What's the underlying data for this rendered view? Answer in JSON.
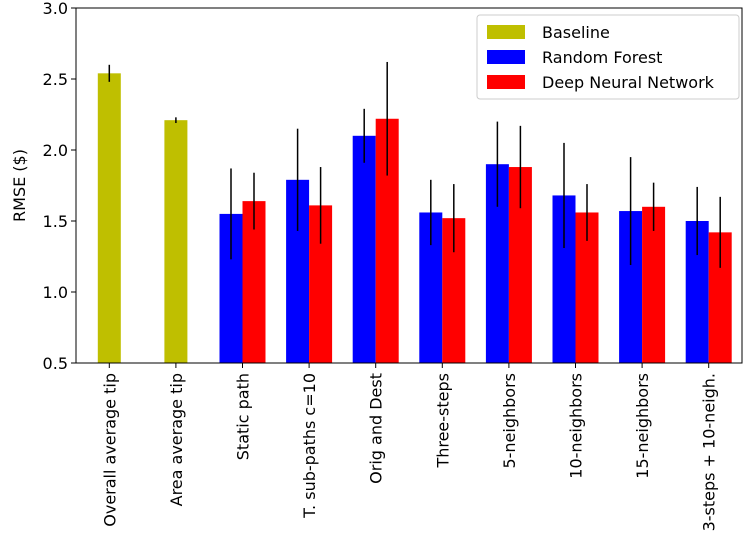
{
  "chart_data": {
    "type": "bar",
    "title": "",
    "xlabel": "",
    "ylabel": "RMSE ($)",
    "ylim": [
      0.5,
      3.0
    ],
    "yticks": [
      "0.5",
      "1.0",
      "1.5",
      "2.0",
      "2.5",
      "3.0"
    ],
    "grid": false,
    "legend_position": "top-right",
    "categories": [
      "Overall average tip",
      "Area average tip",
      "Static path",
      "T. sub-paths c=10",
      "Orig and Dest",
      "Three-steps",
      "5-neighbors",
      "10-neighbors",
      "15-neighbors",
      "3-steps + 10-neigh."
    ],
    "series": [
      {
        "name": "Baseline",
        "color": "#bfbf00",
        "values": [
          2.54,
          2.21,
          null,
          null,
          null,
          null,
          null,
          null,
          null,
          null
        ],
        "errors": [
          0.06,
          0.02,
          null,
          null,
          null,
          null,
          null,
          null,
          null,
          null
        ]
      },
      {
        "name": "Random Forest",
        "color": "#0000ff",
        "values": [
          null,
          null,
          1.55,
          1.79,
          2.1,
          1.56,
          1.9,
          1.68,
          1.57,
          1.5
        ],
        "errors": [
          null,
          null,
          0.32,
          0.36,
          0.19,
          0.23,
          0.3,
          0.37,
          0.38,
          0.24
        ]
      },
      {
        "name": "Deep Neural Network",
        "color": "#ff0000",
        "values": [
          null,
          null,
          1.64,
          1.61,
          2.22,
          1.52,
          1.88,
          1.56,
          1.6,
          1.42
        ],
        "errors": [
          null,
          null,
          0.2,
          0.27,
          0.4,
          0.24,
          0.29,
          0.2,
          0.17,
          0.25
        ]
      }
    ]
  }
}
